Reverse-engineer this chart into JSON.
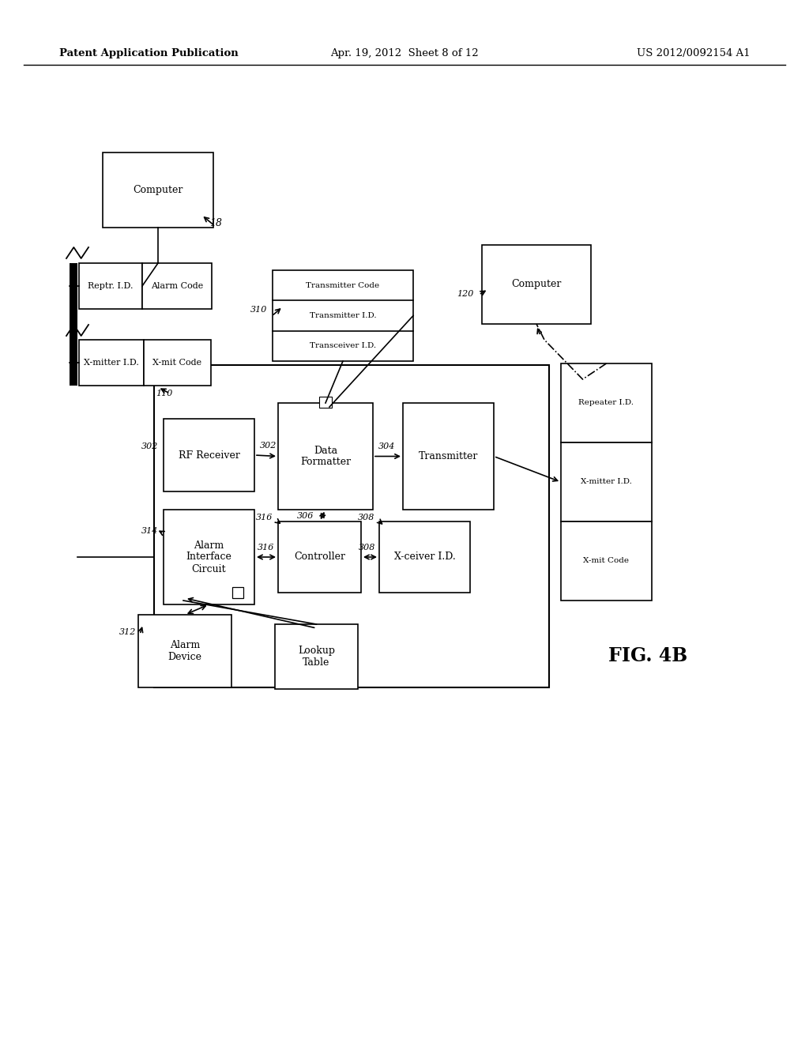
{
  "header_left": "Patent Application Publication",
  "header_mid": "Apr. 19, 2012  Sheet 8 of 12",
  "header_right": "US 2012/0092154 A1",
  "fig_label": "FIG. 4B",
  "background": "#ffffff"
}
